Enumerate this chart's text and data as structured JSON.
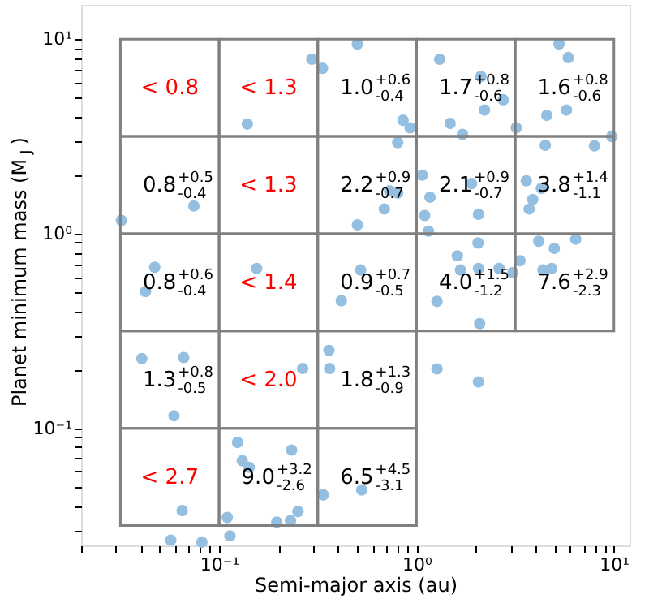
{
  "chart_data": {
    "type": "scatter",
    "xlabel": "Semi-major axis (au)",
    "ylabel": "Planet minimum mass (M$_{J}$)",
    "log": "xy",
    "grid": false,
    "marker": "circle",
    "xlim": [
      0.02,
      12
    ],
    "ylim": [
      0.025,
      15
    ],
    "xticks": [
      {
        "value": 0.02,
        "label": null
      },
      {
        "value": 0.03,
        "label": null
      },
      {
        "value": 0.04,
        "label": null
      },
      {
        "value": 0.05,
        "label": null
      },
      {
        "value": 0.06,
        "label": null
      },
      {
        "value": 0.07,
        "label": null
      },
      {
        "value": 0.08,
        "label": null
      },
      {
        "value": 0.09,
        "label": null
      },
      {
        "value": 0.1,
        "label": "10⁻¹"
      },
      {
        "value": 0.2,
        "label": null
      },
      {
        "value": 0.3,
        "label": null
      },
      {
        "value": 0.4,
        "label": null
      },
      {
        "value": 0.5,
        "label": null
      },
      {
        "value": 0.6,
        "label": null
      },
      {
        "value": 0.7,
        "label": null
      },
      {
        "value": 0.8,
        "label": null
      },
      {
        "value": 0.9,
        "label": null
      },
      {
        "value": 1,
        "label": "10⁰"
      },
      {
        "value": 2,
        "label": null
      },
      {
        "value": 3,
        "label": null
      },
      {
        "value": 4,
        "label": null
      },
      {
        "value": 5,
        "label": null
      },
      {
        "value": 6,
        "label": null
      },
      {
        "value": 7,
        "label": null
      },
      {
        "value": 8,
        "label": null
      },
      {
        "value": 9,
        "label": null
      },
      {
        "value": 10,
        "label": "10¹"
      }
    ],
    "yticks": [
      {
        "value": 0.03,
        "label": null
      },
      {
        "value": 0.04,
        "label": null
      },
      {
        "value": 0.05,
        "label": null
      },
      {
        "value": 0.06,
        "label": null
      },
      {
        "value": 0.07,
        "label": null
      },
      {
        "value": 0.08,
        "label": null
      },
      {
        "value": 0.09,
        "label": null
      },
      {
        "value": 0.1,
        "label": "10⁻¹"
      },
      {
        "value": 0.2,
        "label": null
      },
      {
        "value": 0.3,
        "label": null
      },
      {
        "value": 0.4,
        "label": null
      },
      {
        "value": 0.5,
        "label": null
      },
      {
        "value": 0.6,
        "label": null
      },
      {
        "value": 0.7,
        "label": null
      },
      {
        "value": 0.8,
        "label": null
      },
      {
        "value": 0.9,
        "label": null
      },
      {
        "value": 1,
        "label": "10⁰"
      },
      {
        "value": 2,
        "label": null
      },
      {
        "value": 3,
        "label": null
      },
      {
        "value": 4,
        "label": null
      },
      {
        "value": 5,
        "label": null
      },
      {
        "value": 6,
        "label": null
      },
      {
        "value": 7,
        "label": null
      },
      {
        "value": 8,
        "label": null
      },
      {
        "value": 9,
        "label": null
      },
      {
        "value": 10,
        "label": "10¹"
      }
    ],
    "series": [
      {
        "color": "#94bfe0",
        "x": [
          0.295,
          0.334,
          0.139,
          0.0745,
          0.032,
          0.0472,
          0.0424,
          0.155,
          0.502,
          1.31,
          2.12,
          5.27,
          5.87,
          2.75,
          2.21,
          4.57,
          5.75,
          0.855,
          0.928,
          1.48,
          1.71,
          3.2,
          0.803,
          4.49,
          7.97,
          9.75,
          1.07,
          1.9,
          3.6,
          4.29,
          0.731,
          0.803,
          1.17,
          3.88,
          3.72,
          0.687,
          1.1,
          2.06,
          0.502,
          1.15,
          2.05,
          4.16,
          4.99,
          6.41,
          1.61,
          3.34,
          1.67,
          2.06,
          2.62,
          3.08,
          4.37,
          4.84,
          0.521,
          0.416,
          1.27,
          0.0406,
          0.0662,
          0.265,
          0.0591,
          0.124,
          0.131,
          0.142,
          0.233,
          0.337,
          0.065,
          0.11,
          0.251,
          0.196,
          0.23,
          0.1135,
          0.0569,
          0.0818,
          2.09,
          0.36,
          0.363,
          1.27,
          2.06,
          0.528
        ],
        "values": [
          7.88,
          7.08,
          3.66,
          1.39,
          1.17,
          0.672,
          0.504,
          0.663,
          9.44,
          7.88,
          6.43,
          9.44,
          8.04,
          4.88,
          4.32,
          4.06,
          4.32,
          3.83,
          3.5,
          3.69,
          3.24,
          3.5,
          2.94,
          2.85,
          2.83,
          3.16,
          2.0,
          1.81,
          1.87,
          1.71,
          1.66,
          1.62,
          1.54,
          1.5,
          1.34,
          1.34,
          1.24,
          1.26,
          1.11,
          1.03,
          0.896,
          0.914,
          0.841,
          0.937,
          0.769,
          0.726,
          0.651,
          0.663,
          0.663,
          0.631,
          0.651,
          0.663,
          0.651,
          0.452,
          0.449,
          0.228,
          0.231,
          0.203,
          0.116,
          0.0846,
          0.0681,
          0.063,
          0.0773,
          0.0455,
          0.0378,
          0.0348,
          0.0373,
          0.0329,
          0.0335,
          0.028,
          0.0266,
          0.026,
          0.345,
          0.251,
          0.203,
          0.202,
          0.173,
          0.0482
        ]
      }
    ],
    "cell_labels": [
      [
        "< 0.8",
        "< 1.3",
        "1.0$^{+0.6}$$_{-0.4}$",
        "1.7$^{+0.8}$$_{-0.6}$",
        "1.6$^{+0.8}$$_{-0.6}$"
      ],
      [
        "0.8$^{+0.5}$$_{-0.4}$",
        "< 1.3",
        "2.2$^{+0.9}$$_{-0.7}$",
        "2.1$^{+0.9}$$_{-0.7}$",
        "3.8$^{+1.4}$$_{-1.1}$"
      ],
      [
        "0.8$^{+0.6}$$_{-0.4}$",
        "< 1.4",
        "0.9$^{+0.7}$$_{-0.5}$",
        "4.0$^{+1.5}$$_{-1.2}$",
        "7.6$^{+2.9}$$_{-2.3}$"
      ],
      [
        "1.3$^{+0.8}$$_{-0.5}$",
        "< 2.0",
        "1.8$^{+1.3}$$_{-0.9}$",
        null,
        null
      ],
      [
        "< 2.7",
        "9.0$^{+3.2}$$_{-2.6}$",
        "6.5$^{+4.5}$$_{-3.1}$",
        null,
        null
      ]
    ]
  }
}
